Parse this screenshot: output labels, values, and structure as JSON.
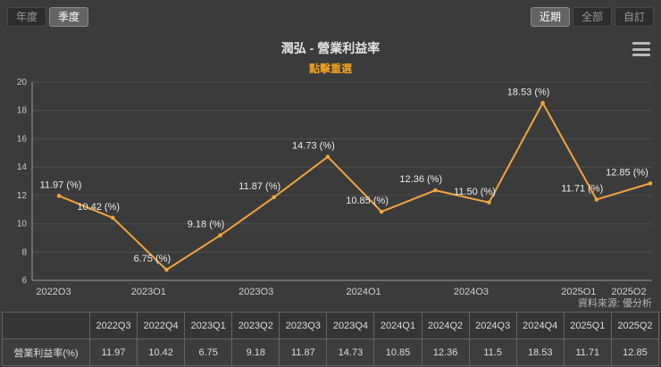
{
  "controls": {
    "period_toggle": [
      {
        "name": "annual",
        "label": "年度",
        "selected": false
      },
      {
        "name": "quarterly",
        "label": "季度",
        "selected": true
      }
    ],
    "range_toggle": [
      {
        "name": "recent",
        "label": "近期",
        "selected": true
      },
      {
        "name": "all",
        "label": "全部",
        "selected": false
      },
      {
        "name": "custom",
        "label": "自訂",
        "selected": false
      }
    ]
  },
  "header": {
    "title": "潤弘 - 營業利益率",
    "subtitle": "點擊重選"
  },
  "source": "資料來源: 優分析",
  "chart_data": {
    "type": "line",
    "title": "潤弘 - 營業利益率",
    "categories": [
      "2022Q3",
      "2022Q4",
      "2023Q1",
      "2023Q2",
      "2023Q3",
      "2023Q4",
      "2024Q1",
      "2024Q2",
      "2024Q3",
      "2024Q4",
      "2025Q1",
      "2025Q2"
    ],
    "values": [
      11.97,
      10.42,
      6.75,
      9.18,
      11.87,
      14.73,
      10.85,
      12.36,
      11.5,
      18.53,
      11.71,
      12.85
    ],
    "point_labels": [
      "11.97 (%)",
      "10.42 (%)",
      "6.75 (%)",
      "9.18 (%)",
      "11.87 (%)",
      "14.73 (%)",
      "10.85 (%)",
      "12.36 (%)",
      "11.50 (%)",
      "18.53 (%)",
      "11.71 (%)",
      "12.85 (%)"
    ],
    "x_tick_indices": [
      0,
      2,
      4,
      6,
      8,
      10,
      11
    ],
    "ylim": [
      6,
      20
    ],
    "y_ticks": [
      6,
      8,
      10,
      12,
      14,
      16,
      18,
      20
    ],
    "series_name": "營業利益率(%)",
    "line_color": "#f2a33c",
    "grid": true,
    "legend": "none"
  },
  "table": {
    "row_label": "營業利益率(%)",
    "columns": [
      "2022Q3",
      "2022Q4",
      "2023Q1",
      "2023Q2",
      "2023Q3",
      "2023Q4",
      "2024Q1",
      "2024Q2",
      "2024Q3",
      "2024Q4",
      "2025Q1",
      "2025Q2"
    ],
    "values": [
      "11.97",
      "10.42",
      "6.75",
      "9.18",
      "11.87",
      "14.73",
      "10.85",
      "12.36",
      "11.5",
      "18.53",
      "11.71",
      "12.85"
    ]
  }
}
